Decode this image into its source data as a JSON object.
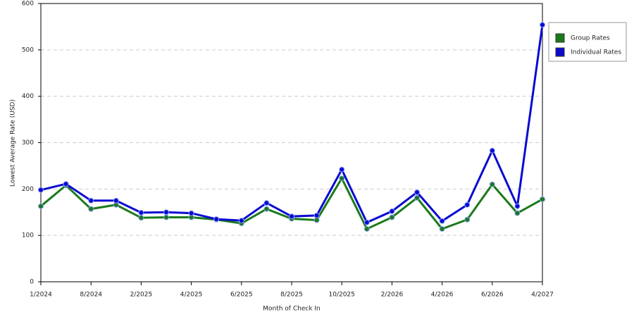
{
  "chart_data": {
    "type": "line",
    "x_label": "Month of Check In",
    "y_label": "Lowest Average Rate (USD)",
    "categories": [
      "1/2024",
      null,
      "8/2024",
      null,
      "2/2025",
      null,
      "4/2025",
      null,
      "6/2025",
      null,
      "8/2025",
      null,
      "10/2025",
      null,
      "2/2026",
      null,
      "4/2026",
      null,
      "6/2026",
      null,
      "4/2027"
    ],
    "series": [
      {
        "name": "Group Rates",
        "color": "#1a7a1a",
        "values": [
          163,
          208,
          157,
          166,
          138,
          139,
          139,
          134,
          126,
          157,
          136,
          133,
          223,
          114,
          139,
          181,
          114,
          134,
          210,
          148,
          178
        ]
      },
      {
        "name": "Individual Rates",
        "color": "#0a0ad0",
        "values": [
          198,
          211,
          175,
          175,
          149,
          150,
          148,
          135,
          132,
          170,
          141,
          143,
          242,
          128,
          152,
          193,
          131,
          166,
          283,
          163,
          554
        ]
      }
    ],
    "ylim": [
      0,
      600
    ],
    "yticks": [
      0,
      100,
      200,
      300,
      400,
      500,
      600
    ],
    "grid": true,
    "legend": "right"
  }
}
